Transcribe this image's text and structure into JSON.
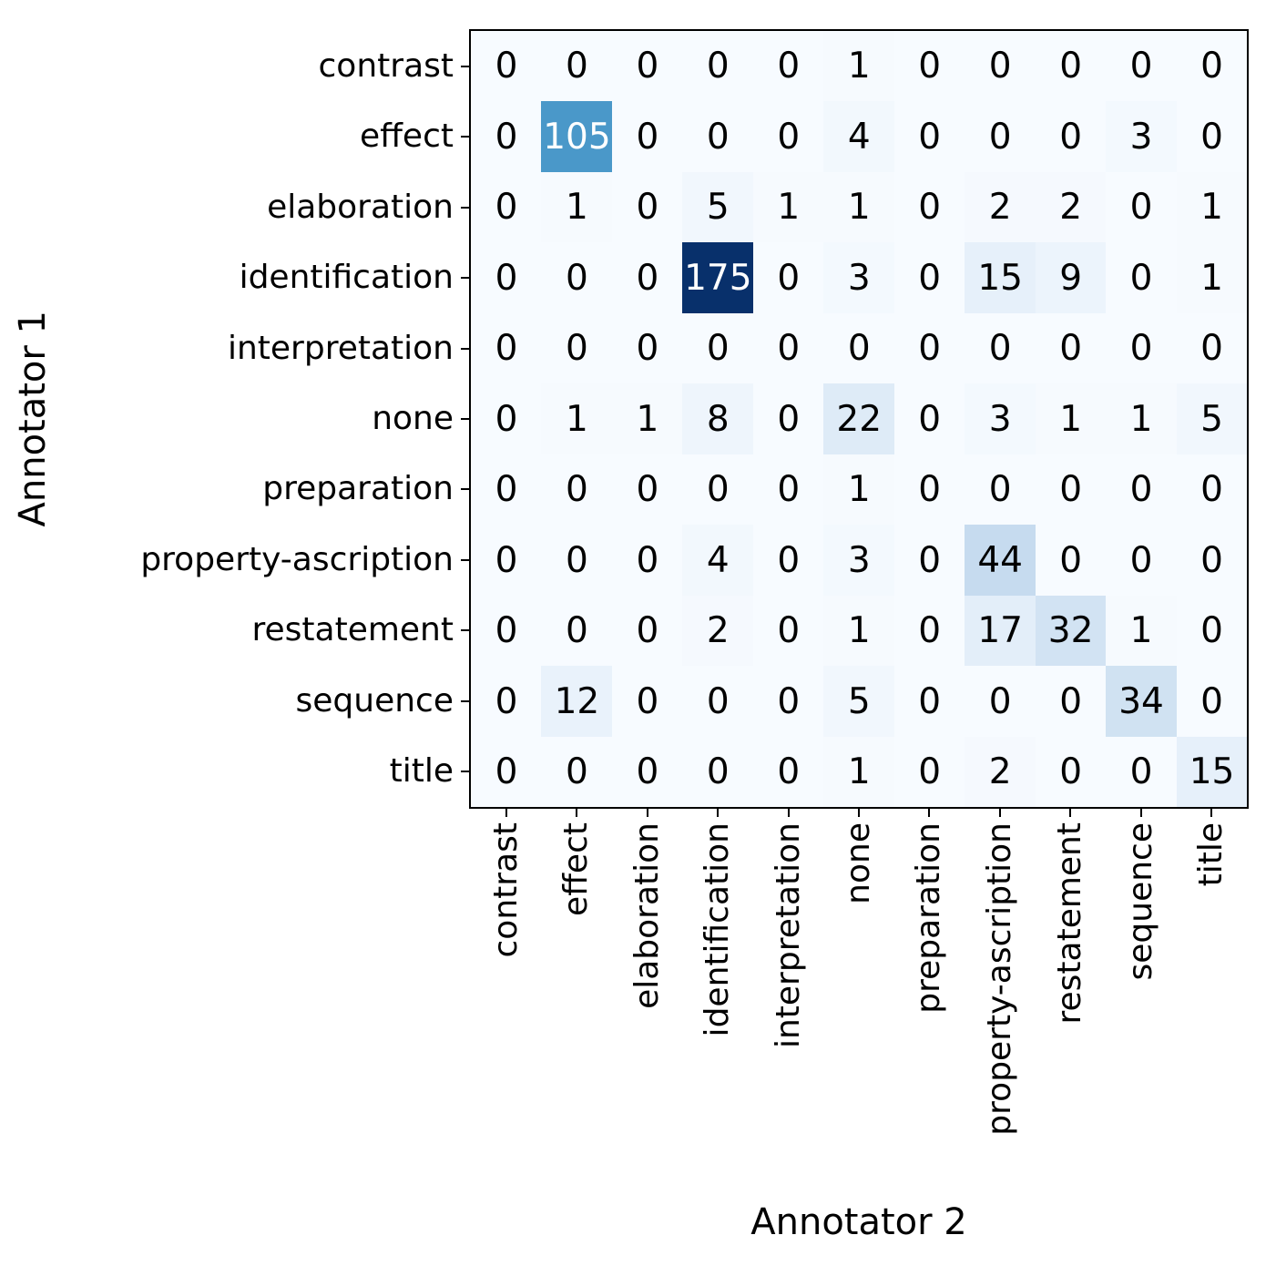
{
  "chart_data": {
    "type": "heatmap",
    "title": "",
    "xlabel": "Annotator 2",
    "ylabel": "Annotator 1",
    "row_labels": [
      "contrast",
      "effect",
      "elaboration",
      "identification",
      "interpretation",
      "none",
      "preparation",
      "property-ascription",
      "restatement",
      "sequence",
      "title"
    ],
    "col_labels": [
      "contrast",
      "effect",
      "elaboration",
      "identification",
      "interpretation",
      "none",
      "preparation",
      "property-ascription",
      "restatement",
      "sequence",
      "title"
    ],
    "matrix": [
      [
        0,
        0,
        0,
        0,
        0,
        1,
        0,
        0,
        0,
        0,
        0
      ],
      [
        0,
        105,
        0,
        0,
        0,
        4,
        0,
        0,
        0,
        3,
        0
      ],
      [
        0,
        1,
        0,
        5,
        1,
        1,
        0,
        2,
        2,
        0,
        1
      ],
      [
        0,
        0,
        0,
        175,
        0,
        3,
        0,
        15,
        9,
        0,
        1
      ],
      [
        0,
        0,
        0,
        0,
        0,
        0,
        0,
        0,
        0,
        0,
        0
      ],
      [
        0,
        1,
        1,
        8,
        0,
        22,
        0,
        3,
        1,
        1,
        5
      ],
      [
        0,
        0,
        0,
        0,
        0,
        1,
        0,
        0,
        0,
        0,
        0
      ],
      [
        0,
        0,
        0,
        4,
        0,
        3,
        0,
        44,
        0,
        0,
        0
      ],
      [
        0,
        0,
        0,
        2,
        0,
        1,
        0,
        17,
        32,
        1,
        0
      ],
      [
        0,
        12,
        0,
        0,
        0,
        5,
        0,
        0,
        0,
        34,
        0
      ],
      [
        0,
        0,
        0,
        0,
        0,
        1,
        0,
        2,
        0,
        0,
        15
      ]
    ],
    "colormap": "Blues",
    "vmin": 0,
    "vmax": 175,
    "value_colors": {
      "0": "#f7fbff",
      "1": "#f6fafe",
      "2": "#f5f9fe",
      "3": "#f3f9fe",
      "4": "#f2f8fd",
      "5": "#f1f7fd",
      "8": "#eef5fc",
      "9": "#ecf4fc",
      "12": "#e9f2fb",
      "15": "#e6f0fa",
      "17": "#e3eef9",
      "22": "#deebf7",
      "32": "#d2e3f3",
      "34": "#d0e2f2",
      "44": "#c6dbef",
      "105": "#4a98c9",
      "175": "#08306b"
    },
    "annot_text_dark": "#000000",
    "annot_text_light": "#ffffff",
    "light_text_threshold": 88,
    "axis_color": "#000000",
    "background": "#ffffff",
    "legend": "none",
    "grid": false
  }
}
